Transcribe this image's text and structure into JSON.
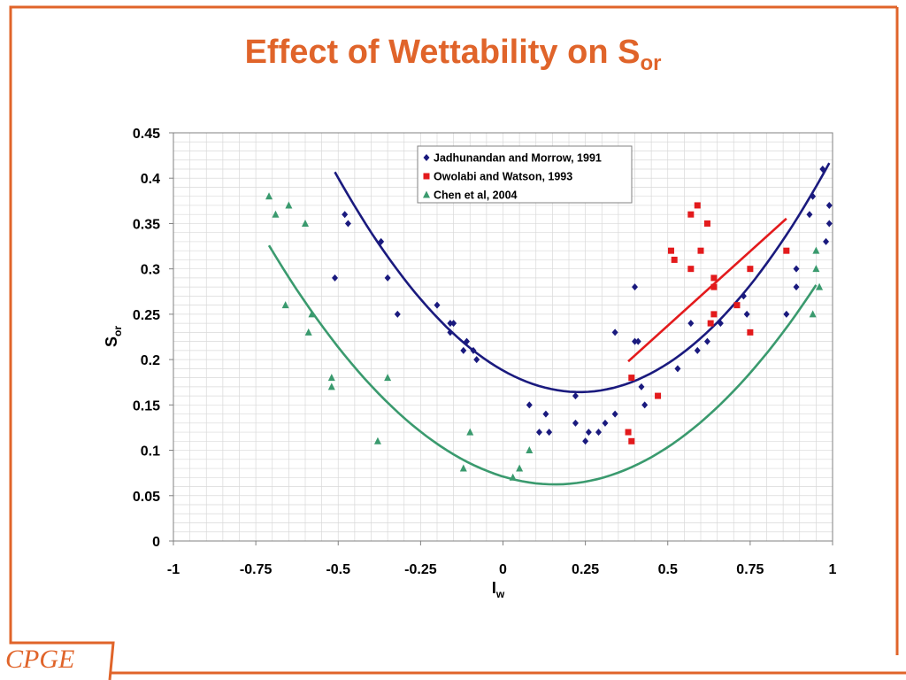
{
  "slide": {
    "title_main": "Effect of Wettability on S",
    "title_sub": "or",
    "logo": "CPGE",
    "accent_color": "#E0642A"
  },
  "chart_data": {
    "type": "scatter",
    "title": "Effect of Wettability on Sor",
    "xlabel_main": "I",
    "xlabel_sub": "w",
    "ylabel_main": "S",
    "ylabel_sub": "or",
    "xlim": [
      -1,
      1
    ],
    "ylim": [
      0,
      0.45
    ],
    "x_ticks": [
      "-1",
      "-0.75",
      "-0.5",
      "-0.25",
      "0",
      "0.25",
      "0.5",
      "0.75",
      "1"
    ],
    "y_ticks": [
      "0",
      "0.05",
      "0.1",
      "0.15",
      "0.2",
      "0.25",
      "0.3",
      "0.35",
      "0.4",
      "0.45"
    ],
    "grid": true,
    "legend_position": "top-center",
    "series": [
      {
        "name": "Jadhunandan and Morrow, 1991",
        "marker": "diamond",
        "color": "#1A1A7E",
        "points": [
          [
            -0.51,
            0.29
          ],
          [
            -0.48,
            0.36
          ],
          [
            -0.47,
            0.35
          ],
          [
            -0.37,
            0.33
          ],
          [
            -0.35,
            0.29
          ],
          [
            -0.32,
            0.25
          ],
          [
            -0.2,
            0.26
          ],
          [
            -0.16,
            0.24
          ],
          [
            -0.16,
            0.23
          ],
          [
            -0.15,
            0.24
          ],
          [
            -0.12,
            0.21
          ],
          [
            -0.11,
            0.22
          ],
          [
            -0.09,
            0.21
          ],
          [
            -0.08,
            0.2
          ],
          [
            0.08,
            0.15
          ],
          [
            0.11,
            0.12
          ],
          [
            0.13,
            0.14
          ],
          [
            0.14,
            0.12
          ],
          [
            0.22,
            0.16
          ],
          [
            0.22,
            0.13
          ],
          [
            0.25,
            0.11
          ],
          [
            0.26,
            0.12
          ],
          [
            0.29,
            0.12
          ],
          [
            0.31,
            0.13
          ],
          [
            0.34,
            0.14
          ],
          [
            0.34,
            0.23
          ],
          [
            0.4,
            0.22
          ],
          [
            0.4,
            0.28
          ],
          [
            0.41,
            0.22
          ],
          [
            0.42,
            0.17
          ],
          [
            0.43,
            0.15
          ],
          [
            0.53,
            0.19
          ],
          [
            0.57,
            0.24
          ],
          [
            0.59,
            0.21
          ],
          [
            0.62,
            0.22
          ],
          [
            0.66,
            0.24
          ],
          [
            0.73,
            0.27
          ],
          [
            0.74,
            0.25
          ],
          [
            0.86,
            0.25
          ],
          [
            0.89,
            0.3
          ],
          [
            0.89,
            0.28
          ],
          [
            0.93,
            0.36
          ],
          [
            0.94,
            0.38
          ],
          [
            0.97,
            0.41
          ],
          [
            0.98,
            0.33
          ],
          [
            0.99,
            0.37
          ],
          [
            0.99,
            0.35
          ]
        ]
      },
      {
        "name": "Owolabi and Watson, 1993",
        "marker": "square",
        "color": "#E31A1C",
        "points": [
          [
            0.38,
            0.12
          ],
          [
            0.39,
            0.11
          ],
          [
            0.39,
            0.18
          ],
          [
            0.47,
            0.16
          ],
          [
            0.51,
            0.32
          ],
          [
            0.52,
            0.31
          ],
          [
            0.57,
            0.3
          ],
          [
            0.57,
            0.36
          ],
          [
            0.59,
            0.37
          ],
          [
            0.6,
            0.32
          ],
          [
            0.62,
            0.35
          ],
          [
            0.63,
            0.24
          ],
          [
            0.64,
            0.25
          ],
          [
            0.64,
            0.28
          ],
          [
            0.64,
            0.29
          ],
          [
            0.71,
            0.26
          ],
          [
            0.75,
            0.23
          ],
          [
            0.75,
            0.3
          ],
          [
            0.86,
            0.32
          ]
        ]
      },
      {
        "name": "Chen et al, 2004",
        "marker": "triangle",
        "color": "#3A9A6E",
        "points": [
          [
            -0.71,
            0.38
          ],
          [
            -0.69,
            0.36
          ],
          [
            -0.66,
            0.26
          ],
          [
            -0.65,
            0.37
          ],
          [
            -0.6,
            0.35
          ],
          [
            -0.59,
            0.23
          ],
          [
            -0.58,
            0.25
          ],
          [
            -0.52,
            0.18
          ],
          [
            -0.52,
            0.17
          ],
          [
            -0.38,
            0.11
          ],
          [
            -0.35,
            0.18
          ],
          [
            -0.1,
            0.12
          ],
          [
            -0.12,
            0.08
          ],
          [
            0.03,
            0.07
          ],
          [
            0.05,
            0.08
          ],
          [
            0.08,
            0.1
          ],
          [
            0.94,
            0.25
          ],
          [
            0.95,
            0.32
          ],
          [
            0.95,
            0.3
          ],
          [
            0.96,
            0.28
          ]
        ]
      }
    ],
    "trendlines": [
      {
        "series": "Jadhunandan and Morrow, 1991",
        "kind": "quadratic",
        "color": "#1A1A7E",
        "x_range": [
          -0.51,
          0.99
        ],
        "coeffs": [
          0.1642,
          0.2325,
          0.44
        ]
      },
      {
        "series": "Owolabi and Watson, 1993",
        "kind": "linear",
        "color": "#E31A1C",
        "x_range": [
          0.38,
          0.86
        ],
        "coeffs": [
          0.198,
          0.328
        ]
      },
      {
        "series": "Chen et al, 2004",
        "kind": "quadratic",
        "color": "#3A9A6E",
        "x_range": [
          -0.71,
          0.95
        ],
        "coeffs": [
          0.0624,
          0.1575,
          0.35
        ]
      }
    ]
  }
}
